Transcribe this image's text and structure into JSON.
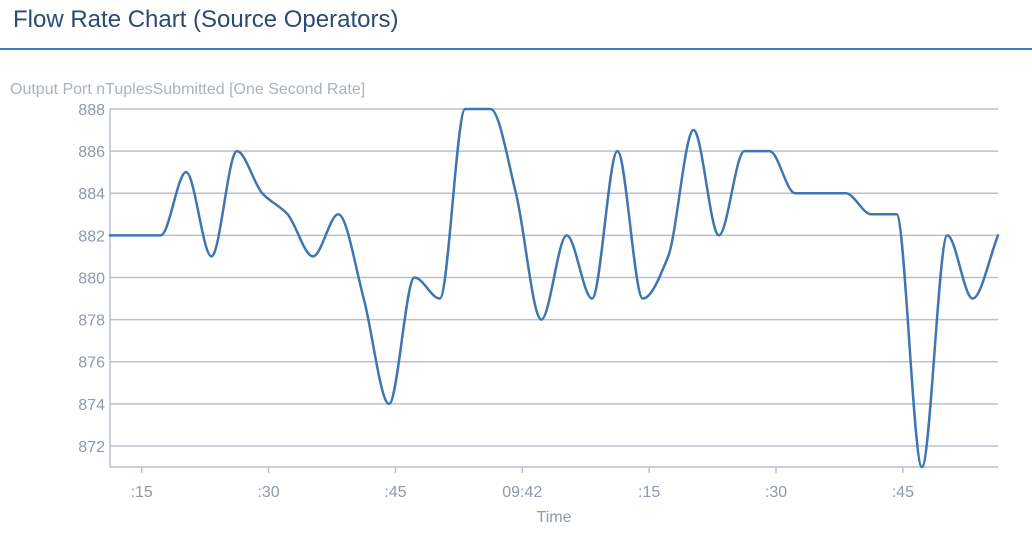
{
  "page": {
    "title": "Flow Rate Chart (Source Operators)"
  },
  "chart_data": {
    "type": "line",
    "subtitle": "Output Port nTuplesSubmitted [One Second Rate]",
    "xlabel": "Time",
    "ylabel": "",
    "grid": true,
    "legend": "none",
    "line_color": "#3e76b0",
    "ylim": [
      871,
      888
    ],
    "yticks": [
      872,
      874,
      876,
      878,
      880,
      882,
      884,
      886,
      888
    ],
    "xlim": [
      -1.5,
      68.5
    ],
    "xticks": [
      {
        "t": 1,
        "label": ":15"
      },
      {
        "t": 11,
        "label": ":30"
      },
      {
        "t": 21,
        "label": ":45"
      },
      {
        "t": 31,
        "label": "09:42"
      },
      {
        "t": 41,
        "label": ":15"
      },
      {
        "t": 51,
        "label": ":30"
      },
      {
        "t": 61,
        "label": ":45"
      }
    ],
    "x": [
      -1.5,
      2.5,
      4.5,
      6.5,
      8.5,
      10.5,
      12.5,
      14.5,
      16.5,
      18.5,
      20.5,
      22.5,
      24.5,
      26.5,
      28.5,
      30.5,
      32.5,
      34.5,
      36.5,
      38.5,
      40.5,
      42.5,
      44.5,
      46.5,
      48.5,
      50.5,
      52.5,
      54.5,
      56.5,
      58.5,
      60.5,
      62.5,
      64.5,
      66.5,
      68.5
    ],
    "values": [
      882,
      882,
      885,
      881,
      886,
      884,
      883,
      881,
      883,
      879,
      874,
      880,
      879,
      888,
      888,
      884,
      878,
      882,
      879,
      886,
      879,
      881,
      887,
      882,
      886,
      886,
      884,
      884,
      884,
      883,
      883,
      871,
      882,
      879,
      882
    ]
  }
}
